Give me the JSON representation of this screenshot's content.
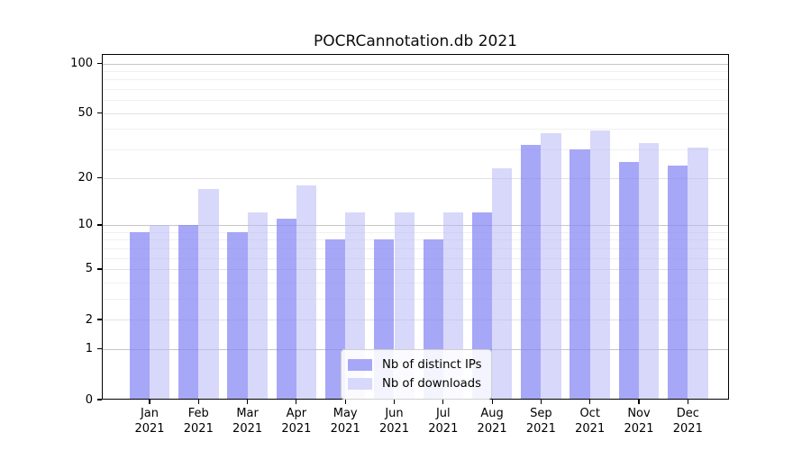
{
  "title": "POCRCannotation.db 2021",
  "chart_data": {
    "type": "bar",
    "title": "POCRCannotation.db 2021",
    "categories": [
      "Jan",
      "Feb",
      "Mar",
      "Apr",
      "May",
      "Jun",
      "Jul",
      "Aug",
      "Sep",
      "Oct",
      "Nov",
      "Dec"
    ],
    "x_sublabel": "2021",
    "series": [
      {
        "name": "Nb of distinct IPs",
        "color": "#a7a7f7",
        "fill": "rgba(133,133,244,0.72)",
        "values": [
          9,
          10,
          9,
          11,
          8,
          8,
          8,
          12,
          32,
          30,
          25,
          24
        ]
      },
      {
        "name": "Nb of downloads",
        "color": "#d8d8fb",
        "fill": "rgba(184,184,248,0.55)",
        "values": [
          10,
          17,
          12,
          18,
          12,
          12,
          12,
          23,
          38,
          39,
          33,
          31
        ]
      }
    ],
    "yscale": "log10(value+1)",
    "yticks": [
      0,
      1,
      2,
      5,
      10,
      20,
      50,
      100
    ],
    "decade_ticks": [
      1,
      10,
      100
    ],
    "minor_yticks": [
      3,
      4,
      6,
      7,
      8,
      9,
      30,
      40,
      60,
      70,
      80,
      90
    ],
    "ylim": [
      0,
      114
    ],
    "grid": true,
    "legend_position": "lower-center",
    "colors": {
      "grid_major": "#c6c6c6",
      "grid_sub": "#e2e2e2",
      "grid_minor": "#f0f0f0",
      "spine": "#000000",
      "text": "#000000",
      "background": "#ffffff"
    }
  }
}
